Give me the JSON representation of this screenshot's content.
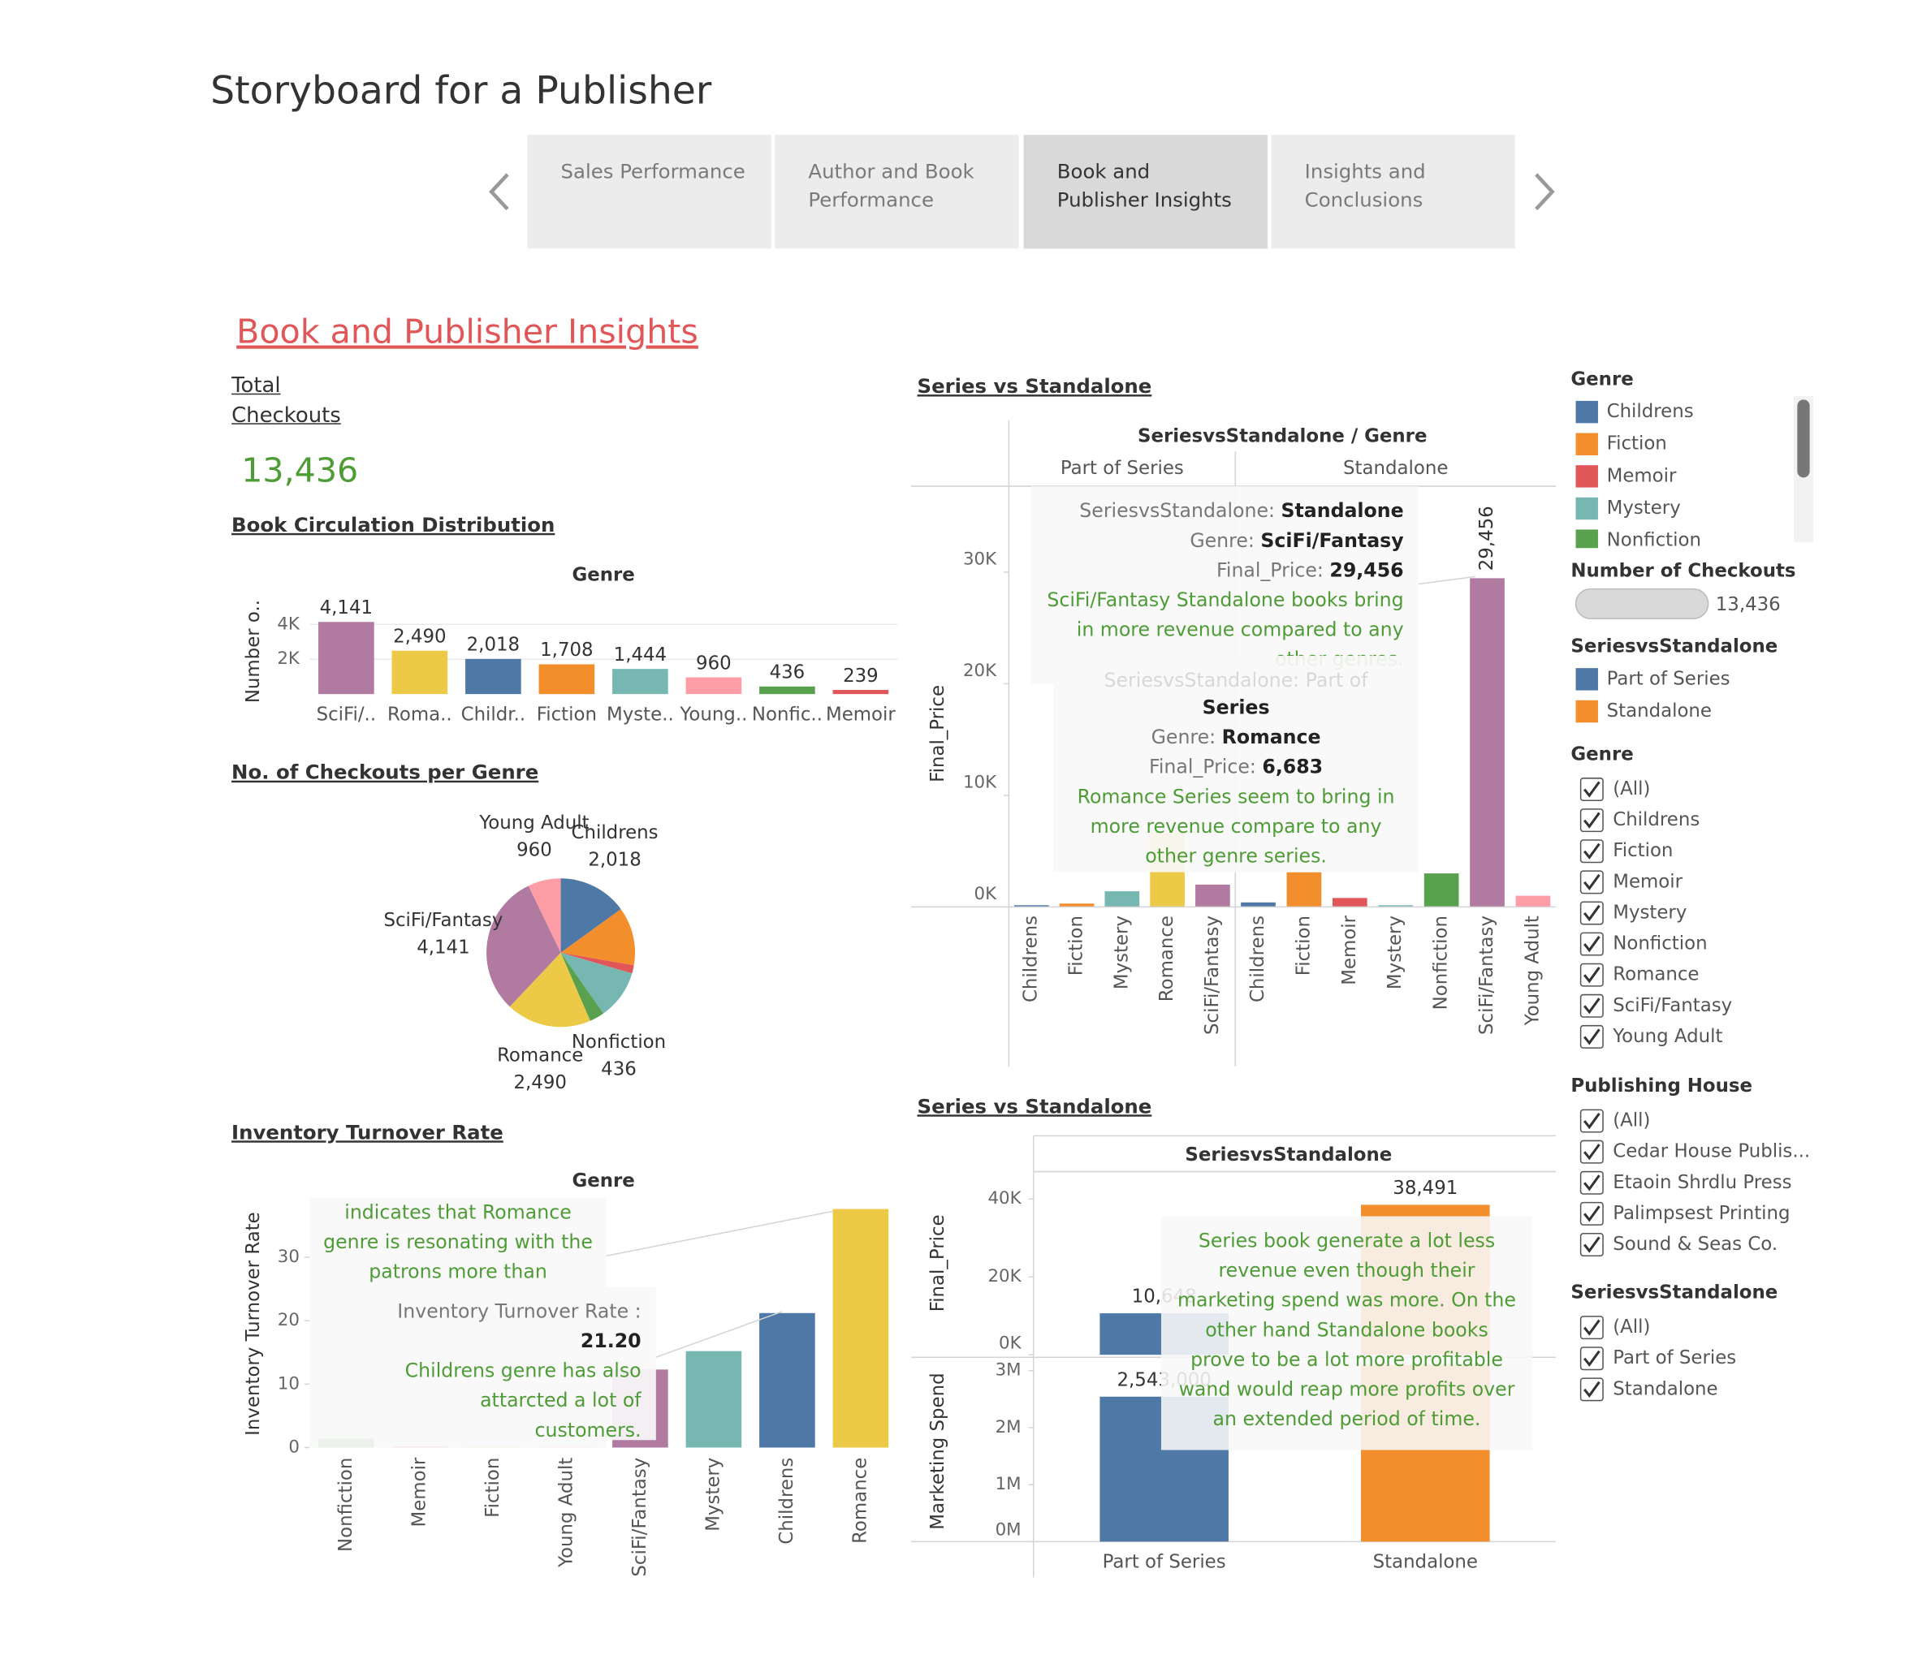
{
  "header": {
    "title": "Storyboard for a Publisher",
    "tabs": [
      "Sales Performance",
      "Author and Book Performance",
      "Book and Publisher Insights",
      "Insights and Conclusions"
    ],
    "active_tab": 2
  },
  "page": {
    "title": "Book and Publisher Insights",
    "kpi_label": "Total Checkouts",
    "kpi_value": "13,436"
  },
  "chart_data": [
    {
      "type": "bar",
      "title": "Book Circulation Distribution",
      "header": "Genre",
      "ylabel": "Number o..",
      "categories": [
        "SciFi/..",
        "Roma..",
        "Childr..",
        "Fiction",
        "Myste..",
        "Young..",
        "Nonfic..",
        "Memoir"
      ],
      "values": [
        4141,
        2490,
        2018,
        1708,
        1444,
        960,
        436,
        239
      ],
      "value_labels": [
        "4,141",
        "2,490",
        "2,018",
        "1,708",
        "1,444",
        "960",
        "436",
        "239"
      ],
      "colors": [
        "#b07aa1",
        "#edc948",
        "#4e79a7",
        "#f28e2b",
        "#76b7b2",
        "#ff9da7",
        "#59a14f",
        "#e15759"
      ],
      "ylim": [
        0,
        4900
      ],
      "yticks": [
        {
          "value": 2000,
          "label": "2K"
        },
        {
          "value": 4000,
          "label": "4K"
        }
      ],
      "grid": true,
      "rotate_labels": false
    },
    {
      "type": "pie",
      "title": "No. of Checkouts per Genre",
      "categories": [
        "Childrens",
        null,
        null,
        null,
        "Nonfiction",
        "Romance",
        "SciFi/Fantasy",
        "Young Adult"
      ],
      "values": [
        2018,
        1708,
        239,
        1444,
        436,
        2490,
        4141,
        960
      ],
      "value_labels": [
        "2,018",
        null,
        null,
        null,
        "436",
        "2,490",
        "4,141",
        "960"
      ],
      "colors": [
        "#4e79a7",
        "#f28e2b",
        "#e15759",
        "#76b7b2",
        "#59a14f",
        "#edc948",
        "#b07aa1",
        "#ff9da7"
      ]
    },
    {
      "type": "paneled_bar",
      "title": "Series vs Standalone",
      "header": "SeriesvsStandalone / Genre",
      "ylabel": "Final_Price",
      "panes": [
        {
          "name": "Part of Series",
          "categories": [
            "Childrens",
            "Fiction",
            "Mystery",
            "Romance",
            "SciFi/Fantasy"
          ],
          "values": [
            150,
            300,
            1400,
            6683,
            2000
          ],
          "colors": [
            "#4e79a7",
            "#f28e2b",
            "#76b7b2",
            "#edc948",
            "#b07aa1"
          ]
        },
        {
          "name": "Standalone",
          "categories": [
            "Childrens",
            "Fiction",
            "Memoir",
            "Mystery",
            "Nonfiction",
            "SciFi/Fantasy",
            "Young Adult"
          ],
          "values": [
            400,
            3100,
            800,
            150,
            3000,
            29456,
            1000
          ],
          "value_labels": [
            null,
            null,
            null,
            null,
            null,
            "29,456",
            null
          ],
          "colors": [
            "#4e79a7",
            "#f28e2b",
            "#e15759",
            "#76b7b2",
            "#59a14f",
            "#b07aa1",
            "#ff9da7"
          ]
        }
      ],
      "ylim": [
        0,
        37700
      ],
      "yticks": [
        {
          "value": 0,
          "label": "0K"
        },
        {
          "value": 10000,
          "label": "10K"
        },
        {
          "value": 20000,
          "label": "20K"
        },
        {
          "value": 30000,
          "label": "30K"
        }
      ],
      "grid": false,
      "tooltips": [
        {
          "fields": [
            {
              "label": "SeriesvsStandalone:",
              "value": "Standalone"
            },
            {
              "label": "Genre:",
              "value": "SciFi/Fantasy"
            },
            {
              "label": "Final_Price:",
              "value": "29,456"
            }
          ],
          "note": "SciFi/Fantasy Standalone books bring in more revenue compared to any other genres."
        },
        {
          "ghost": "SeriesvsStandalone: Part of",
          "title": "Series",
          "fields": [
            {
              "label": "Genre:",
              "value": "Romance"
            },
            {
              "label": "Final_Price:",
              "value": "6,683"
            }
          ],
          "note": "Romance Series seem to bring in more revenue compare to any other genre series."
        }
      ]
    },
    {
      "type": "bar",
      "title": "Inventory Turnover Rate",
      "header": "Genre",
      "ylabel": "Inventory Turnover Rate",
      "categories": [
        "Nonfiction",
        "Memoir",
        "Fiction",
        "Young Adult",
        "SciFi/Fantasy",
        "Mystery",
        "Childrens",
        "Romance"
      ],
      "values": [
        1.4,
        0.2,
        0.1,
        0.2,
        12.3,
        15.2,
        21.2,
        37.6
      ],
      "colors": [
        "#59a14f",
        "#e15759",
        "#f28e2b",
        "#ff9da7",
        "#b07aa1",
        "#76b7b2",
        "#4e79a7",
        "#edc948"
      ],
      "ylim": [
        0,
        39
      ],
      "yticks": [
        0,
        10,
        20,
        30
      ],
      "grid": false,
      "rotate_labels": true,
      "annotation": "indicates that Romance genre is resonating with the patrons more than",
      "tooltip": {
        "label": "Inventory Turnover Rate :",
        "value": "21.20",
        "note": "Childrens genre has also attarcted a lot of customers."
      }
    },
    {
      "type": "dual_bar",
      "title": "Series vs Standalone",
      "header": "SeriesvsStandalone",
      "categories": [
        "Part of Series",
        "Standalone"
      ],
      "colors": [
        "#4e79a7",
        "#f28e2b"
      ],
      "rows": [
        {
          "ylabel": "Final_Price",
          "values": [
            10648,
            38491
          ],
          "value_labels": [
            "10,648",
            "38,491"
          ],
          "ylim": [
            0,
            47000
          ],
          "yticks": [
            {
              "value": 0,
              "label": "0K"
            },
            {
              "value": 20000,
              "label": "20K"
            },
            {
              "value": 40000,
              "label": "40K"
            }
          ]
        },
        {
          "ylabel": "Marketing Spend",
          "values": [
            2543000,
            3100000
          ],
          "value_labels": [
            "2,543,000",
            null
          ],
          "ylim": [
            0,
            3170000
          ],
          "yticks": [
            {
              "value": 0,
              "label": "0M"
            },
            {
              "value": 1000000,
              "label": "1M"
            },
            {
              "value": 2000000,
              "label": "2M"
            },
            {
              "value": 3000000,
              "label": "3M"
            }
          ]
        }
      ],
      "note": "Series book generate a lot less revenue even though their marketing spend was more. On the other hand Standalone books prove to be a lot more profitable wand would reap more profits over an extended period of time."
    }
  ],
  "sidebar": {
    "legends": [
      {
        "title": "Genre",
        "items": [
          {
            "name": "Childrens",
            "color": "#4e79a7"
          },
          {
            "name": "Fiction",
            "color": "#f28e2b"
          },
          {
            "name": "Memoir",
            "color": "#e15759"
          },
          {
            "name": "Mystery",
            "color": "#76b7b2"
          },
          {
            "name": "Nonfiction",
            "color": "#59a14f"
          }
        ]
      },
      {
        "title": "Number of Checkouts",
        "value": "13,436"
      },
      {
        "title": "SeriesvsStandalone",
        "items": [
          {
            "name": "Part of Series",
            "color": "#4e79a7"
          },
          {
            "name": "Standalone",
            "color": "#f28e2b"
          }
        ]
      }
    ],
    "filters": [
      {
        "title": "Genre",
        "options": [
          "(All)",
          "Childrens",
          "Fiction",
          "Memoir",
          "Mystery",
          "Nonfiction",
          "Romance",
          "SciFi/Fantasy",
          "Young Adult"
        ]
      },
      {
        "title": "Publishing House",
        "options": [
          "(All)",
          "Cedar House Publis...",
          "Etaoin Shrdlu Press",
          "Palimpsest Printing",
          "Sound & Seas Co."
        ]
      },
      {
        "title": "SeriesvsStandalone",
        "options": [
          "(All)",
          "Part of Series",
          "Standalone"
        ]
      }
    ]
  }
}
